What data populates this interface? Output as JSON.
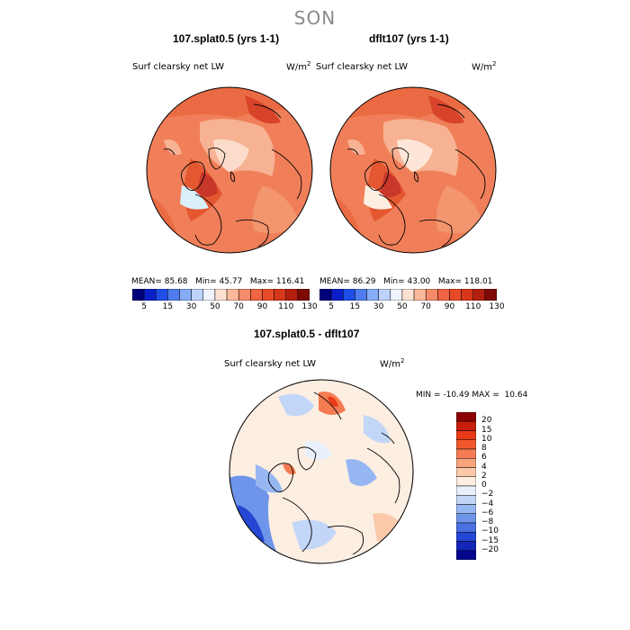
{
  "season": "SON",
  "panels": [
    {
      "title": "107.splat0.5 (yrs 1-1)",
      "variable": "Surf clearsky net LW",
      "units_base": "W/m",
      "units_exp": "2",
      "mean_label": "MEAN=",
      "mean": "85.68",
      "min_label": "Min=",
      "min": "45.77",
      "max_label": "Max=",
      "max": "116.41"
    },
    {
      "title": "dflt107 (yrs 1-1)",
      "variable": "Surf clearsky net LW",
      "units_base": "W/m",
      "units_exp": "2",
      "mean_label": "MEAN=",
      "mean": "86.29",
      "min_label": "Min=",
      "min": "43.00",
      "max_label": "Max=",
      "max": "118.01"
    }
  ],
  "colorbar_top": {
    "labels": [
      "5",
      "15",
      "30",
      "50",
      "70",
      "90",
      "110",
      "130"
    ],
    "colors": [
      "#00007a",
      "#0b1fc8",
      "#1f4de6",
      "#4f7df0",
      "#86acf7",
      "#bdd3fb",
      "#eef3fe",
      "#fde2d3",
      "#f9b99a",
      "#f48b6a",
      "#ef6442",
      "#e84a27",
      "#d8361a",
      "#b21f0f",
      "#7d0a05"
    ]
  },
  "diff_panel": {
    "title": "107.splat0.5 - dflt107",
    "variable": "Surf clearsky net LW",
    "units_base": "W/m",
    "units_exp": "2",
    "min_label": "MIN =",
    "min": "-10.49",
    "max_label": "MAX =",
    "max": "10.64"
  },
  "colorbar_diff": {
    "labels": [
      "20",
      "15",
      "10",
      "8",
      "6",
      "4",
      "2",
      "0",
      "−2",
      "−4",
      "−6",
      "−8",
      "−10",
      "−15",
      "−20"
    ],
    "colors": [
      "#8b0000",
      "#c81e0c",
      "#e83a16",
      "#f2582d",
      "#f57c52",
      "#f8a47d",
      "#fbc9aa",
      "#fdeee2",
      "#e8f0fc",
      "#c2d6f8",
      "#97b7f2",
      "#6e95ea",
      "#4a70e2",
      "#2547d4",
      "#1326b8",
      "#03068f"
    ]
  }
}
